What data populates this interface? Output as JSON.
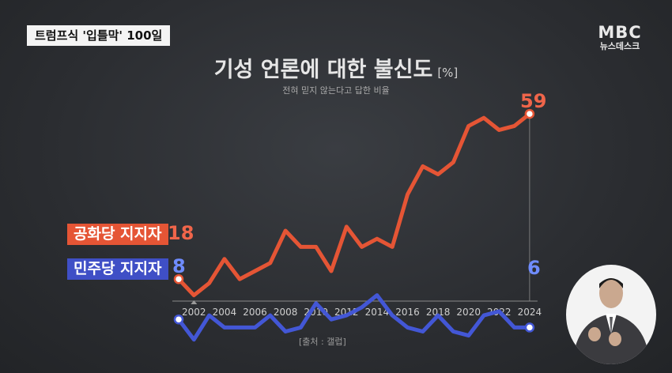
{
  "caption": "트럼프식 '입틀막' 100일",
  "logo": {
    "line1": "MBC",
    "line2": "뉴스데스크"
  },
  "chart_data": {
    "type": "line",
    "title": "기성 언론에 대한 불신도",
    "unit": "[%]",
    "subtitle": "전혀 믿지 않는다고 답한 비율",
    "source": "[출처 : 갤럽]",
    "x_tick_labels": [
      "2002",
      "2004",
      "2006",
      "2008",
      "2010",
      "2012",
      "2014",
      "2016",
      "2018",
      "2020",
      "2022",
      "2024"
    ],
    "x": [
      2001,
      2002,
      2003,
      2004,
      2005,
      2006,
      2007,
      2008,
      2009,
      2010,
      2011,
      2012,
      2013,
      2014,
      2015,
      2016,
      2017,
      2018,
      2019,
      2020,
      2021,
      2022,
      2023,
      2024
    ],
    "series": [
      {
        "name": "공화당 지지자",
        "color": "#e55535",
        "start_label": "18",
        "end_label": "59",
        "values": [
          18,
          14,
          17,
          23,
          18,
          20,
          22,
          30,
          26,
          26,
          20,
          31,
          26,
          28,
          26,
          39,
          46,
          44,
          47,
          56,
          58,
          55,
          56,
          59
        ]
      },
      {
        "name": "민주당 지지자",
        "color": "#3f4fc6",
        "start_label": "8",
        "end_label": "6",
        "values": [
          8,
          3,
          9,
          6,
          6,
          6,
          9,
          5,
          6,
          12,
          8,
          9,
          11,
          14,
          9,
          6,
          5,
          9,
          5,
          4,
          9,
          10,
          6,
          6
        ]
      }
    ]
  }
}
